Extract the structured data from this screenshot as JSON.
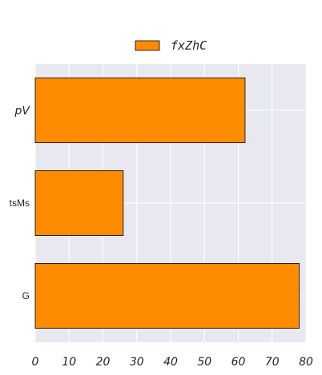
{
  "chart_data": {
    "type": "bar",
    "orientation": "horizontal",
    "categories": [
      "pV",
      "tsMs",
      "G"
    ],
    "series": [
      {
        "name": "fxZhC",
        "values": [
          62,
          26,
          78
        ]
      }
    ],
    "xlim": [
      0,
      80
    ],
    "xticks": [
      "0",
      "10",
      "20",
      "30",
      "40",
      "50",
      "60",
      "70",
      "80"
    ],
    "grid": true,
    "legend_position": "top-center",
    "bar_color": "#ff8c00",
    "background_color": "#e8e8f1"
  }
}
